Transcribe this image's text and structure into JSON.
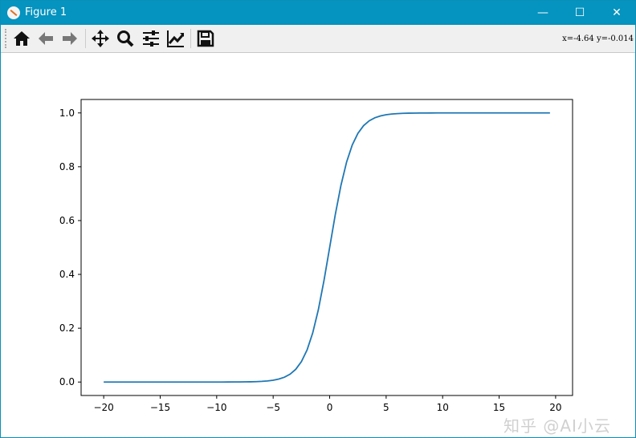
{
  "window": {
    "title": "Figure 1",
    "minimize": "—",
    "maximize": "☐",
    "close": "✕"
  },
  "toolbar": {
    "buttons": [
      "home-icon",
      "back-icon",
      "forward-icon",
      "pan-icon",
      "zoom-icon",
      "configure-subplots-icon",
      "edit-axis-icon",
      "save-icon"
    ],
    "coords": "x=-4.64 y=-0.014"
  },
  "watermark": "知乎 @AI小云",
  "colors": {
    "line": "#1f77b4",
    "titlebar": "#0593bf"
  },
  "chart_data": {
    "type": "line",
    "title": "",
    "xlabel": "",
    "ylabel": "",
    "xlim": [
      -22,
      21.5
    ],
    "ylim": [
      -0.05,
      1.05
    ],
    "xticks": [
      -20,
      -15,
      -10,
      -5,
      0,
      5,
      10,
      15,
      20
    ],
    "xtick_labels": [
      "−20",
      "−15",
      "−10",
      "−5",
      "0",
      "5",
      "10",
      "15",
      "20"
    ],
    "yticks": [
      0.0,
      0.2,
      0.4,
      0.6,
      0.8,
      1.0
    ],
    "ytick_labels": [
      "0.0",
      "0.2",
      "0.4",
      "0.6",
      "0.8",
      "1.0"
    ],
    "grid": false,
    "series": [
      {
        "color": "#1f77b4",
        "x": [
          -20,
          -19.5,
          -19,
          -18.5,
          -18,
          -17.5,
          -17,
          -16.5,
          -16,
          -15.5,
          -15,
          -14.5,
          -14,
          -13.5,
          -13,
          -12.5,
          -12,
          -11.5,
          -11,
          -10.5,
          -10,
          -9.5,
          -9,
          -8.5,
          -8,
          -7.5,
          -7,
          -6.5,
          -6,
          -5.5,
          -5,
          -4.5,
          -4,
          -3.5,
          -3,
          -2.5,
          -2,
          -1.5,
          -1,
          -0.5,
          0,
          0.5,
          1,
          1.5,
          2,
          2.5,
          3,
          3.5,
          4,
          4.5,
          5,
          5.5,
          6,
          6.5,
          7,
          7.5,
          8,
          8.5,
          9,
          9.5,
          10,
          10.5,
          11,
          11.5,
          12,
          12.5,
          13,
          13.5,
          14,
          14.5,
          15,
          15.5,
          16,
          16.5,
          17,
          17.5,
          18,
          18.5,
          19,
          19.5
        ],
        "y": [
          0,
          0,
          0,
          0,
          0,
          0,
          0,
          0,
          0,
          0,
          0,
          0,
          0,
          0,
          0,
          0,
          0,
          0,
          0,
          0,
          0,
          0,
          0.0001,
          0.0002,
          0.0003,
          0.0006,
          0.0009,
          0.0015,
          0.0025,
          0.0041,
          0.0067,
          0.011,
          0.018,
          0.0293,
          0.0474,
          0.0759,
          0.1192,
          0.1824,
          0.2689,
          0.3775,
          0.5,
          0.6225,
          0.7311,
          0.8176,
          0.8808,
          0.9241,
          0.9526,
          0.9707,
          0.982,
          0.989,
          0.9933,
          0.9959,
          0.9975,
          0.9985,
          0.9991,
          0.9994,
          0.9997,
          0.9998,
          0.9999,
          1,
          1,
          1,
          1,
          1,
          1,
          1,
          1,
          1,
          1,
          1,
          1,
          1,
          1,
          1,
          1,
          1,
          1,
          1,
          1,
          1
        ]
      }
    ]
  }
}
